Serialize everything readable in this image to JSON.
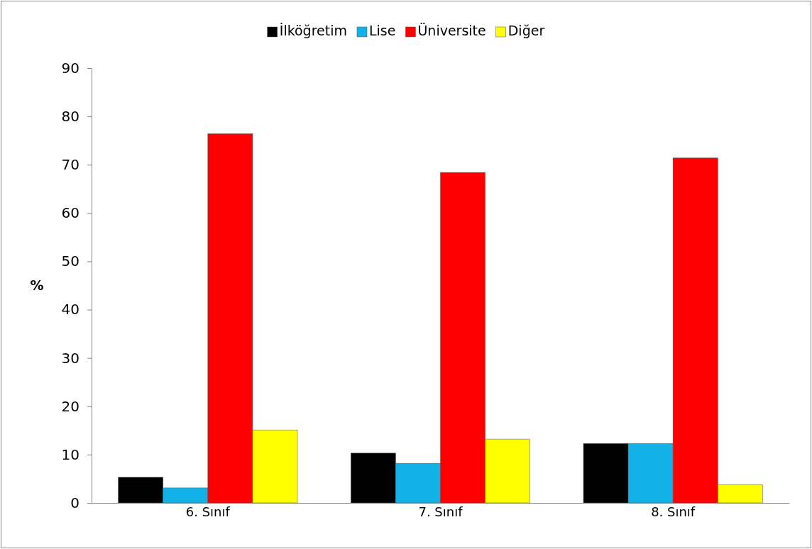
{
  "chart_data": {
    "type": "bar",
    "ylabel": "%",
    "categories": [
      "6. Sınıf",
      "7. Sınıf",
      "8. Sınıf"
    ],
    "series": [
      {
        "name": "İlköğretim",
        "color": "#000000",
        "values": [
          5.3,
          10.3,
          12.3
        ]
      },
      {
        "name": "Lise",
        "color": "#12b2e8",
        "values": [
          3.1,
          8.2,
          12.3
        ]
      },
      {
        "name": "Üniversite",
        "color": "#ff0000",
        "values": [
          76.4,
          68.4,
          71.4
        ]
      },
      {
        "name": "Diğer",
        "color": "#ffff00",
        "values": [
          15.1,
          13.2,
          3.8
        ]
      }
    ],
    "ylim": [
      0,
      90
    ],
    "yticks": [
      0,
      10,
      20,
      30,
      40,
      50,
      60,
      70,
      80,
      90
    ],
    "grid": false,
    "legend": "top"
  }
}
